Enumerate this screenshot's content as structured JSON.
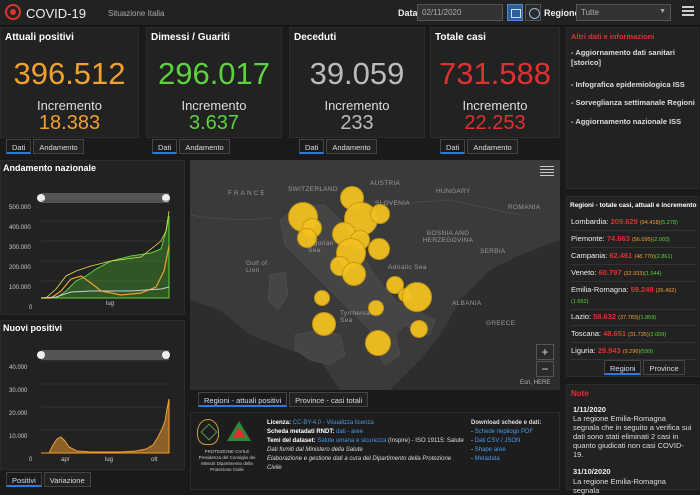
{
  "header": {
    "title": "COVID-19",
    "subtitle": "Situazione Italia",
    "date_label": "Data",
    "date_value": "02/11/2020",
    "region_label": "Regione",
    "region_value": "Tutte"
  },
  "kpis": [
    {
      "title": "Attuali positivi",
      "value": "396.512",
      "inc_label": "Incremento",
      "inc": "18.383",
      "color": "#f0a030"
    },
    {
      "title": "Dimessi / Guariti",
      "value": "296.017",
      "inc_label": "Incremento",
      "inc": "3.637",
      "color": "#5cd23c"
    },
    {
      "title": "Deceduti",
      "value": "39.059",
      "inc_label": "Incremento",
      "inc": "233",
      "color": "#bbbbbb"
    },
    {
      "title": "Totale casi",
      "value": "731.588",
      "inc_label": "Incremento",
      "inc": "22.253",
      "color": "#e03030"
    }
  ],
  "kpi_tabs": [
    "Dati",
    "Andamento"
  ],
  "links": {
    "head": "Altri dati e informazioni",
    "items": [
      "Aggiornamento dati sanitari [storico]",
      "Infografica epidemiologica ISS",
      "Sorveglianza settimanale Regioni",
      "Aggiornamento nazionale ISS"
    ]
  },
  "regions": {
    "head": "Regioni - totale casi, attuali e incremento",
    "rows": [
      {
        "name": "Lombardia:",
        "tot": "209.629",
        "a": "(94.418)",
        "b": "(5.278)"
      },
      {
        "name": "Piemonte:",
        "tot": "74.663",
        "a": "(56.095)",
        "b": "(2.003)"
      },
      {
        "name": "Campania:",
        "tot": "62.461",
        "a": "(48.770)",
        "b": "(2.861)"
      },
      {
        "name": "Veneto:",
        "tot": "60.797",
        "a": "(32.933)",
        "b": "(1.544)"
      },
      {
        "name": "Emilia-Romagna:",
        "tot": "59.249",
        "a": "(26.492)",
        "b": "(1.652)"
      },
      {
        "name": "Lazio:",
        "tot": "58.632",
        "a": "(37.783)",
        "b": "(1.859)"
      },
      {
        "name": "Toscana:",
        "tot": "48.651",
        "a": "(31.735)",
        "b": "(2.009)"
      },
      {
        "name": "Liguria:",
        "tot": "29.943",
        "a": "(9.296)",
        "b": "(599)"
      }
    ],
    "tabs": [
      "Regioni",
      "Province"
    ]
  },
  "notes": {
    "head": "Note",
    "items": [
      {
        "date": "1/11/2020",
        "text": "La regione Emilia-Romagna segnala che in seguito a verifica sui dati sono stati eliminati 2 casi in quanto giudicati non casi COVID-19."
      },
      {
        "date": "31/10/2020",
        "text": "La regione Emilia-Romagna segnala"
      }
    ]
  },
  "map": {
    "labels": {
      "france": "FRANCE",
      "switzerland": "SWITZERLAND",
      "austria": "AUSTRIA",
      "hungary": "HUNGARY",
      "slovenia": "SLOVENIA",
      "romania": "ROMANIA",
      "bosnia": "BOSNIA AND HERZEGOVINA",
      "serbia": "SERBIA",
      "albania": "ALBANIA",
      "greece": "GREECE",
      "ligurian": "Ligurian Sea",
      "gulf": "Gulf of Lion",
      "adriatic": "Adriatic Sea",
      "tyrrhenian": "Tyrrhenian Sea"
    },
    "tabs": [
      "Regioni - attuali positivi",
      "Province - casi totali"
    ],
    "credit": "Esri, HERE",
    "zoom_in": "+",
    "zoom_out": "−"
  },
  "andamento": {
    "title": "Andamento nazionale",
    "yticks": [
      "500.000",
      "400.000",
      "300.000",
      "200.000",
      "100.000",
      "0"
    ],
    "xlabel": "lug"
  },
  "nuovi": {
    "title": "Nuovi positivi",
    "yticks": [
      "40.000",
      "30.000",
      "20.000",
      "10.000",
      "0"
    ],
    "xticks": [
      "apr",
      "lug",
      "ott"
    ],
    "tabs": [
      "Positivi",
      "Variazione"
    ]
  },
  "footer": {
    "org": "PROTEZIONE CIVILE Presidenza del Consiglio dei Ministri Dipartimento della Protezione Civile",
    "l1a": "Licenza:",
    "l1b": "CC-BY-4.0 - Visualizza licenza",
    "l2a": "Scheda metadati RNDT:",
    "l2b": "dati - aree",
    "l3a": "Temi del dataset:",
    "l3b": "Salute umana e sicurezza",
    "l3c": "(Inspire) - ISO 19115: Salute",
    "l4": "Dati forniti dal Ministero della Salute",
    "l5": "Elaborazione e gestione dati a cura del Dipartimento della Protezione Civile",
    "dl_head": "Download schede e dati:",
    "dl_items": [
      "Schede riepilogo PDF",
      "Dati CSV / JSON",
      "Shape aree",
      "Metadata"
    ]
  }
}
